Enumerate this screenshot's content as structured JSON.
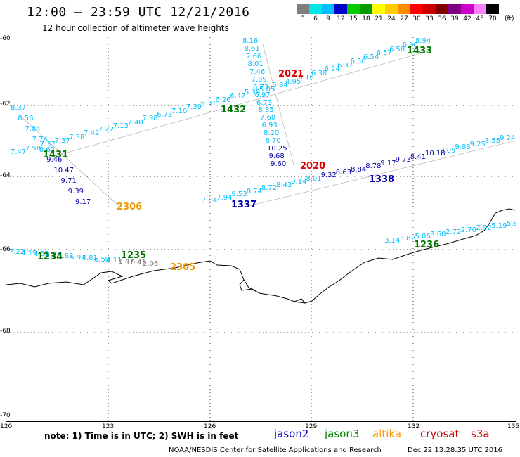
{
  "header": {
    "title": "12:00 – 23:59 UTC 12/21/2016",
    "subtitle": "12 hour collection of altimeter wave heights"
  },
  "colorbar": {
    "colors": [
      "#7f7f7f",
      "#00e5e5",
      "#00bfff",
      "#0000cd",
      "#00cc00",
      "#009900",
      "#ffff00",
      "#ffcc00",
      "#ff8c00",
      "#ff0000",
      "#cc0000",
      "#800000",
      "#800080",
      "#cc00cc",
      "#ff80ff",
      "#000000"
    ],
    "labels": [
      "3",
      "6",
      "9",
      "12",
      "15",
      "18",
      "21",
      "24",
      "27",
      "30",
      "33",
      "36",
      "39",
      "42",
      "45",
      "70"
    ],
    "unit": "(ft)"
  },
  "axes": {
    "lat_labels": [
      "-60",
      "-62",
      "-64",
      "-66",
      "-68",
      "-70"
    ],
    "lon_labels": [
      "120",
      "123",
      "126",
      "129",
      "132",
      "135"
    ]
  },
  "tracks": [
    {
      "name": "track-1433",
      "color": "#00bfff",
      "values": [
        "8.94",
        "6.80",
        "6.58",
        "6.57",
        "6.54",
        "6.50",
        "6.37",
        "6.24",
        "6.38",
        "6.16",
        "4.95",
        "5.84",
        "5.05"
      ]
    },
    {
      "name": "track-2021",
      "color": "#00bfff",
      "values": [
        "8.16",
        "8.61",
        "7.66",
        "8.01",
        "7.46",
        "7.89",
        "6.73",
        "6.97",
        "6.73",
        "8.85",
        "7.60",
        "6.93",
        "8.20",
        "8.70",
        "10.25",
        "9.68",
        "9.60"
      ]
    },
    {
      "name": "track-1432",
      "color": "#00bfff",
      "values": [
        "5.38",
        "6.47",
        "6.26",
        "6.31",
        "7.39",
        "7.10",
        "6.73",
        "7.98",
        "7.40",
        "7.13",
        "7.22",
        "7.42",
        "7.38",
        "7.37",
        "7.37",
        "7.58",
        "7.47"
      ]
    },
    {
      "name": "track-1431",
      "color": "#00bfff",
      "values": [
        "8.37",
        "8.56",
        "7.84",
        "7.74",
        "8.62",
        "9.46",
        "10.47",
        "9.71",
        "9.39",
        "9.17"
      ]
    },
    {
      "name": "track-1338",
      "color": "#00bfff",
      "values": [
        "9.24",
        "8.55",
        "9.25",
        "9.88",
        "9.09",
        "10.18",
        "8.41",
        "9.73",
        "9.17",
        "8.78",
        "8.84",
        "8.63",
        "9.32",
        "8.01",
        "9.14",
        "8.43",
        "8.72",
        "8.74",
        "9.53",
        "7.94",
        "7.04"
      ]
    },
    {
      "name": "track-1236",
      "color": "#00bfff",
      "values": [
        "3.14",
        "3.82",
        "5.06",
        "3.60",
        "2.72",
        "2.70",
        "2.92",
        "5.19",
        "5.8"
      ]
    },
    {
      "name": "track-1234",
      "color": "#00bfff",
      "values": [
        "7.22",
        "4.15",
        "4.63",
        "5.43",
        "5.63",
        "5.91",
        "4.81",
        "6.59",
        "4.11",
        "1.47",
        "0.41",
        "2.06"
      ]
    }
  ],
  "track_ids": [
    {
      "label": "1433",
      "color": "#007700"
    },
    {
      "label": "2021",
      "color": "#dd0000"
    },
    {
      "label": "1432",
      "color": "#007700"
    },
    {
      "label": "1431",
      "color": "#007700"
    },
    {
      "label": "2020",
      "color": "#dd0000"
    },
    {
      "label": "1338",
      "color": "#0000aa"
    },
    {
      "label": "1337",
      "color": "#0000aa"
    },
    {
      "label": "2306",
      "color": "#ee9900"
    },
    {
      "label": "1236",
      "color": "#007700"
    },
    {
      "label": "1235",
      "color": "#007700"
    },
    {
      "label": "1234",
      "color": "#007700"
    },
    {
      "label": "2305",
      "color": "#ee9900"
    }
  ],
  "note": "note: 1) Time is in UTC; 2) SWH is in feet",
  "satellites": [
    {
      "name": "jason2",
      "color": "#0000cc"
    },
    {
      "name": "jason3",
      "color": "#008800"
    },
    {
      "name": "altika",
      "color": "#ff9900"
    },
    {
      "name": "cryosat",
      "color": "#cc0000"
    },
    {
      "name": "s3a",
      "color": "#cc0000"
    }
  ],
  "footer": {
    "credit": "NOAA/NESDIS Center for Satellite Applications and Research",
    "timestamp": "Dec 22 13:28:35 UTC 2016"
  }
}
